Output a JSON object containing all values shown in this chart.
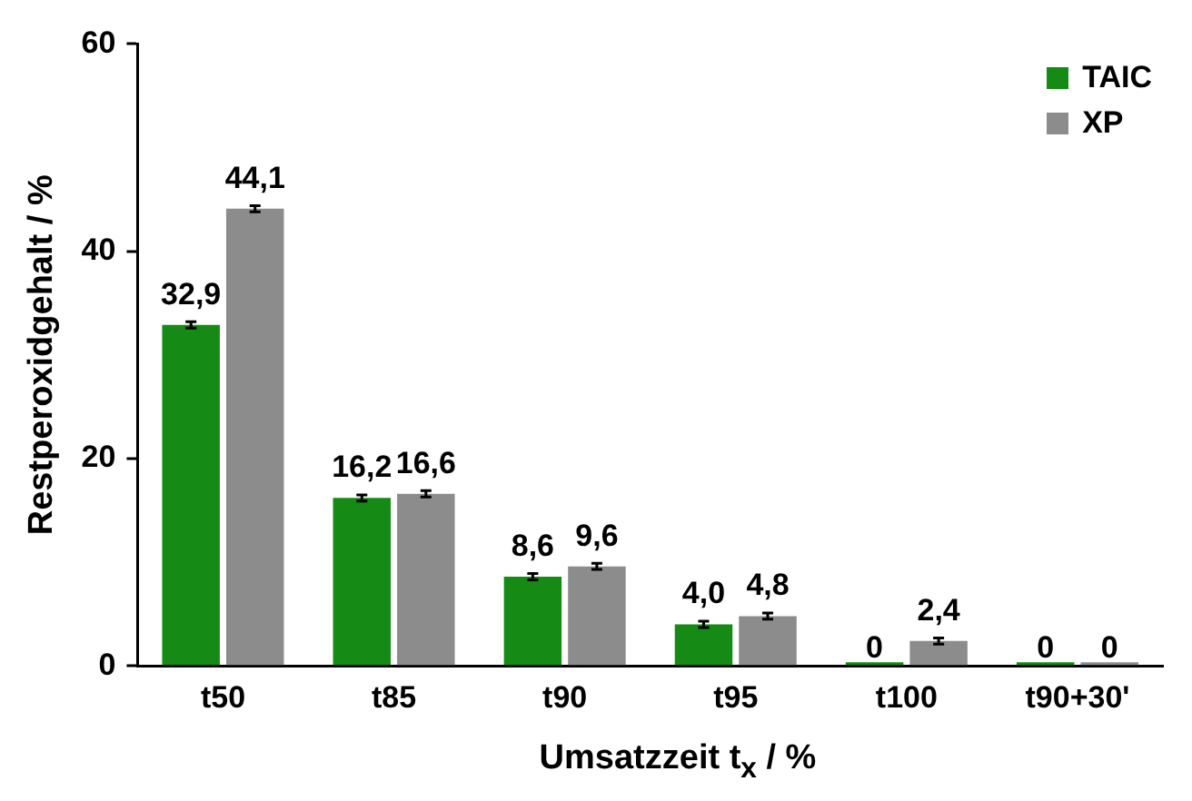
{
  "chart_data": {
    "type": "bar",
    "xlabel": "Umsatzzeit t$_{x}$ / %",
    "ylabel": "Restperoxidgehalt / %",
    "categories": [
      "t50",
      "t85",
      "t90",
      "t95",
      "t100",
      "t90+30'"
    ],
    "series": [
      {
        "name": "TAIC",
        "color": "#158a15",
        "values": [
          32.9,
          16.2,
          8.6,
          4.0,
          0,
          0
        ],
        "value_labels": [
          "32,9",
          "16,2",
          "8,6",
          "4,0",
          "0",
          "0"
        ],
        "errors": [
          0.3,
          0.3,
          0.3,
          0.3,
          null,
          null
        ]
      },
      {
        "name": "XP",
        "color": "#8c8c8c",
        "values": [
          44.1,
          16.6,
          9.6,
          4.8,
          2.4,
          0
        ],
        "value_labels": [
          "44,1",
          "16,6",
          "9,6",
          "4,8",
          "2,4",
          "0"
        ],
        "errors": [
          0.3,
          0.3,
          0.3,
          0.3,
          0.3,
          null
        ]
      }
    ],
    "ylim": [
      0,
      60
    ],
    "yticks": [
      0,
      20,
      40,
      60
    ],
    "grid": false,
    "legend": "top right"
  }
}
